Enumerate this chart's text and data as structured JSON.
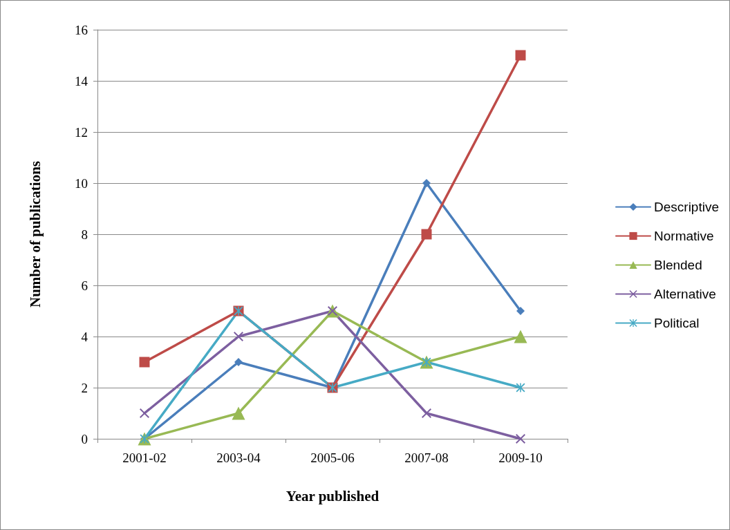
{
  "chart_data": {
    "type": "line",
    "xlabel": "Year published",
    "ylabel": "Number of publications",
    "categories": [
      "2001-02",
      "2003-04",
      "2005-06",
      "2007-08",
      "2009-10"
    ],
    "series": [
      {
        "name": "Descriptive",
        "color": "#4a7ebb",
        "marker": "diamond",
        "values": [
          0,
          3,
          2,
          10,
          5
        ]
      },
      {
        "name": "Normative",
        "color": "#be4b48",
        "marker": "square",
        "values": [
          3,
          5,
          2,
          8,
          15
        ]
      },
      {
        "name": "Blended",
        "color": "#98b954",
        "marker": "triangle",
        "values": [
          0,
          1,
          5,
          3,
          4
        ]
      },
      {
        "name": "Alternative",
        "color": "#7d5fa0",
        "marker": "cross",
        "values": [
          1,
          4,
          5,
          1,
          0
        ]
      },
      {
        "name": "Political",
        "color": "#46aac5",
        "marker": "star",
        "values": [
          0,
          5,
          2,
          3,
          2
        ]
      }
    ],
    "ylim": [
      0,
      16
    ],
    "yticks": [
      0,
      2,
      4,
      6,
      8,
      10,
      12,
      14,
      16
    ],
    "grid": "y",
    "legend": "right",
    "line_style": "solid"
  }
}
